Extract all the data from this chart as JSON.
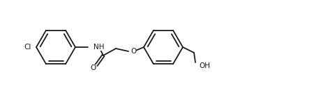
{
  "figsize": [
    4.5,
    1.5
  ],
  "dpi": 100,
  "bg": "#ffffff",
  "bond_color": "#1a1a1a",
  "bond_lw": 1.3,
  "font_size": 7.5,
  "font_color": "#1a1a1a",
  "xlim": [
    0,
    450
  ],
  "ylim": [
    0,
    150
  ]
}
